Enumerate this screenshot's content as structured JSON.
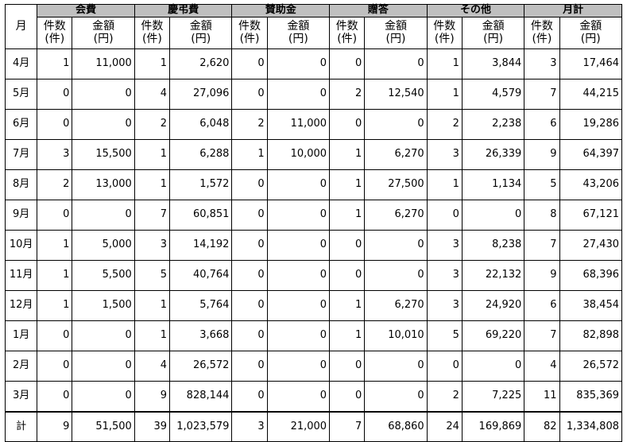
{
  "header": {
    "month_label": "月",
    "groups": [
      "会費",
      "慶弔費",
      "賛助金",
      "贈答",
      "その他",
      "月計"
    ],
    "count_label": "件数\n(件)",
    "amount_label": "金額\n(円)"
  },
  "rows": [
    {
      "month": "4月",
      "cells": [
        "1",
        "11,000",
        "1",
        "2,620",
        "0",
        "0",
        "0",
        "0",
        "1",
        "3,844",
        "3",
        "17,464"
      ]
    },
    {
      "month": "5月",
      "cells": [
        "0",
        "0",
        "4",
        "27,096",
        "0",
        "0",
        "2",
        "12,540",
        "1",
        "4,579",
        "7",
        "44,215"
      ]
    },
    {
      "month": "6月",
      "cells": [
        "0",
        "0",
        "2",
        "6,048",
        "2",
        "11,000",
        "0",
        "0",
        "2",
        "2,238",
        "6",
        "19,286"
      ]
    },
    {
      "month": "7月",
      "cells": [
        "3",
        "15,500",
        "1",
        "6,288",
        "1",
        "10,000",
        "1",
        "6,270",
        "3",
        "26,339",
        "9",
        "64,397"
      ]
    },
    {
      "month": "8月",
      "cells": [
        "2",
        "13,000",
        "1",
        "1,572",
        "0",
        "0",
        "1",
        "27,500",
        "1",
        "1,134",
        "5",
        "43,206"
      ]
    },
    {
      "month": "9月",
      "cells": [
        "0",
        "0",
        "7",
        "60,851",
        "0",
        "0",
        "1",
        "6,270",
        "0",
        "0",
        "8",
        "67,121"
      ]
    },
    {
      "month": "10月",
      "cells": [
        "1",
        "5,000",
        "3",
        "14,192",
        "0",
        "0",
        "0",
        "0",
        "3",
        "8,238",
        "7",
        "27,430"
      ]
    },
    {
      "month": "11月",
      "cells": [
        "1",
        "5,500",
        "5",
        "40,764",
        "0",
        "0",
        "0",
        "0",
        "3",
        "22,132",
        "9",
        "68,396"
      ]
    },
    {
      "month": "12月",
      "cells": [
        "1",
        "1,500",
        "1",
        "5,764",
        "0",
        "0",
        "1",
        "6,270",
        "3",
        "24,920",
        "6",
        "38,454"
      ]
    },
    {
      "month": "1月",
      "cells": [
        "0",
        "0",
        "1",
        "3,668",
        "0",
        "0",
        "1",
        "10,010",
        "5",
        "69,220",
        "7",
        "82,898"
      ]
    },
    {
      "month": "2月",
      "cells": [
        "0",
        "0",
        "4",
        "26,572",
        "0",
        "0",
        "0",
        "0",
        "0",
        "0",
        "4",
        "26,572"
      ]
    },
    {
      "month": "3月",
      "cells": [
        "0",
        "0",
        "9",
        "828,144",
        "0",
        "0",
        "0",
        "0",
        "2",
        "7,225",
        "11",
        "835,369"
      ]
    }
  ],
  "total": {
    "label": "計",
    "cells": [
      "9",
      "51,500",
      "39",
      "1,023,579",
      "3",
      "21,000",
      "7",
      "68,860",
      "24",
      "169,869",
      "82",
      "1,334,808"
    ]
  }
}
